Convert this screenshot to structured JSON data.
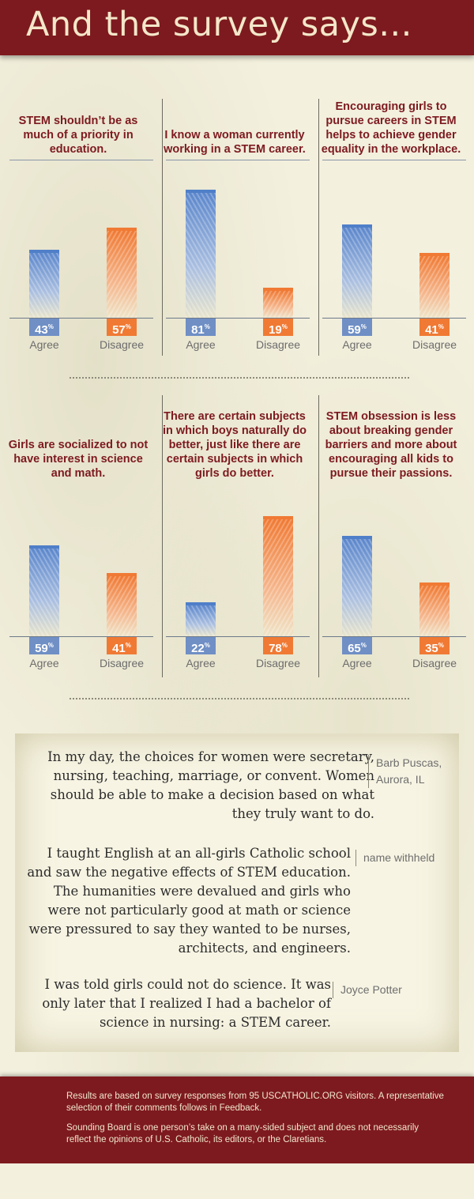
{
  "header": {
    "title": "And the survey says..."
  },
  "chart_data": [
    {
      "type": "bar",
      "title": "STEM shouldn’t be as much of a priority in education.",
      "categories": [
        "Agree",
        "Disagree"
      ],
      "values": [
        43,
        57
      ],
      "labels": [
        "43",
        "57"
      ],
      "unit": "%",
      "colors": [
        "#5c87cc",
        "#f07a34"
      ],
      "ylim": [
        0,
        100
      ]
    },
    {
      "type": "bar",
      "title": "I know a woman currently working in a STEM career.",
      "categories": [
        "Agree",
        "Disagree"
      ],
      "values": [
        81,
        19
      ],
      "labels": [
        "81",
        "19"
      ],
      "unit": "%",
      "colors": [
        "#5c87cc",
        "#f07a34"
      ],
      "ylim": [
        0,
        100
      ]
    },
    {
      "type": "bar",
      "title": "Encouraging girls to pursue careers in STEM helps to achieve gender equality in the workplace.",
      "categories": [
        "Agree",
        "Disagree"
      ],
      "values": [
        59,
        41
      ],
      "labels": [
        "59",
        "41"
      ],
      "unit": "%",
      "colors": [
        "#5c87cc",
        "#f07a34"
      ],
      "ylim": [
        0,
        100
      ]
    },
    {
      "type": "bar",
      "title": "Girls are socialized to not have interest in science and math.",
      "categories": [
        "Agree",
        "Disagree"
      ],
      "values": [
        59,
        41
      ],
      "labels": [
        "59",
        "41"
      ],
      "unit": "%",
      "colors": [
        "#5c87cc",
        "#f07a34"
      ],
      "ylim": [
        0,
        100
      ]
    },
    {
      "type": "bar",
      "title": "There are certain subjects in which boys naturally do better, just like there are certain subjects in which girls do better.",
      "categories": [
        "Agree",
        "Disagree"
      ],
      "values": [
        22,
        78
      ],
      "labels": [
        "22",
        "78"
      ],
      "unit": "%",
      "colors": [
        "#5c87cc",
        "#f07a34"
      ],
      "ylim": [
        0,
        100
      ]
    },
    {
      "type": "bar",
      "title": "STEM obsession is less about breaking gender barriers and more about encouraging all kids to pursue their passions.",
      "categories": [
        "Agree",
        "Disagree"
      ],
      "values": [
        65,
        35
      ],
      "labels": [
        "65",
        "35"
      ],
      "unit": "%",
      "colors": [
        "#5c87cc",
        "#f07a34"
      ],
      "ylim": [
        0,
        100
      ]
    }
  ],
  "quotes": [
    {
      "text": "In my day, the choices for women were secretary, nursing, teaching, marriage, or convent. Women should be able to make a decision based on what they truly want to do.",
      "author": "Barb Puscas, Aurora, IL"
    },
    {
      "text": "I taught English at an all-girls Catholic school and saw the negative effects of STEM education. The humanities were devalued and girls who were not particularly good at math or science were pressured to say they wanted to be nurses, architects, and engineers.",
      "author": "name withheld"
    },
    {
      "text": "I was told girls could not do science. It was only later that I realized I had a bachelor of science in nursing: a STEM career.",
      "author": "Joyce Potter"
    }
  ],
  "footer": {
    "line1": "Results are based on survey responses from 95 USCATHOLIC.ORG visitors. A representative selection of their comments follows in Feedback.",
    "line2": "Sounding Board is one person’s take on a many-sided subject and does not necessarily reflect the opinions of U.S. Catholic, its editors, or the Claretians."
  }
}
